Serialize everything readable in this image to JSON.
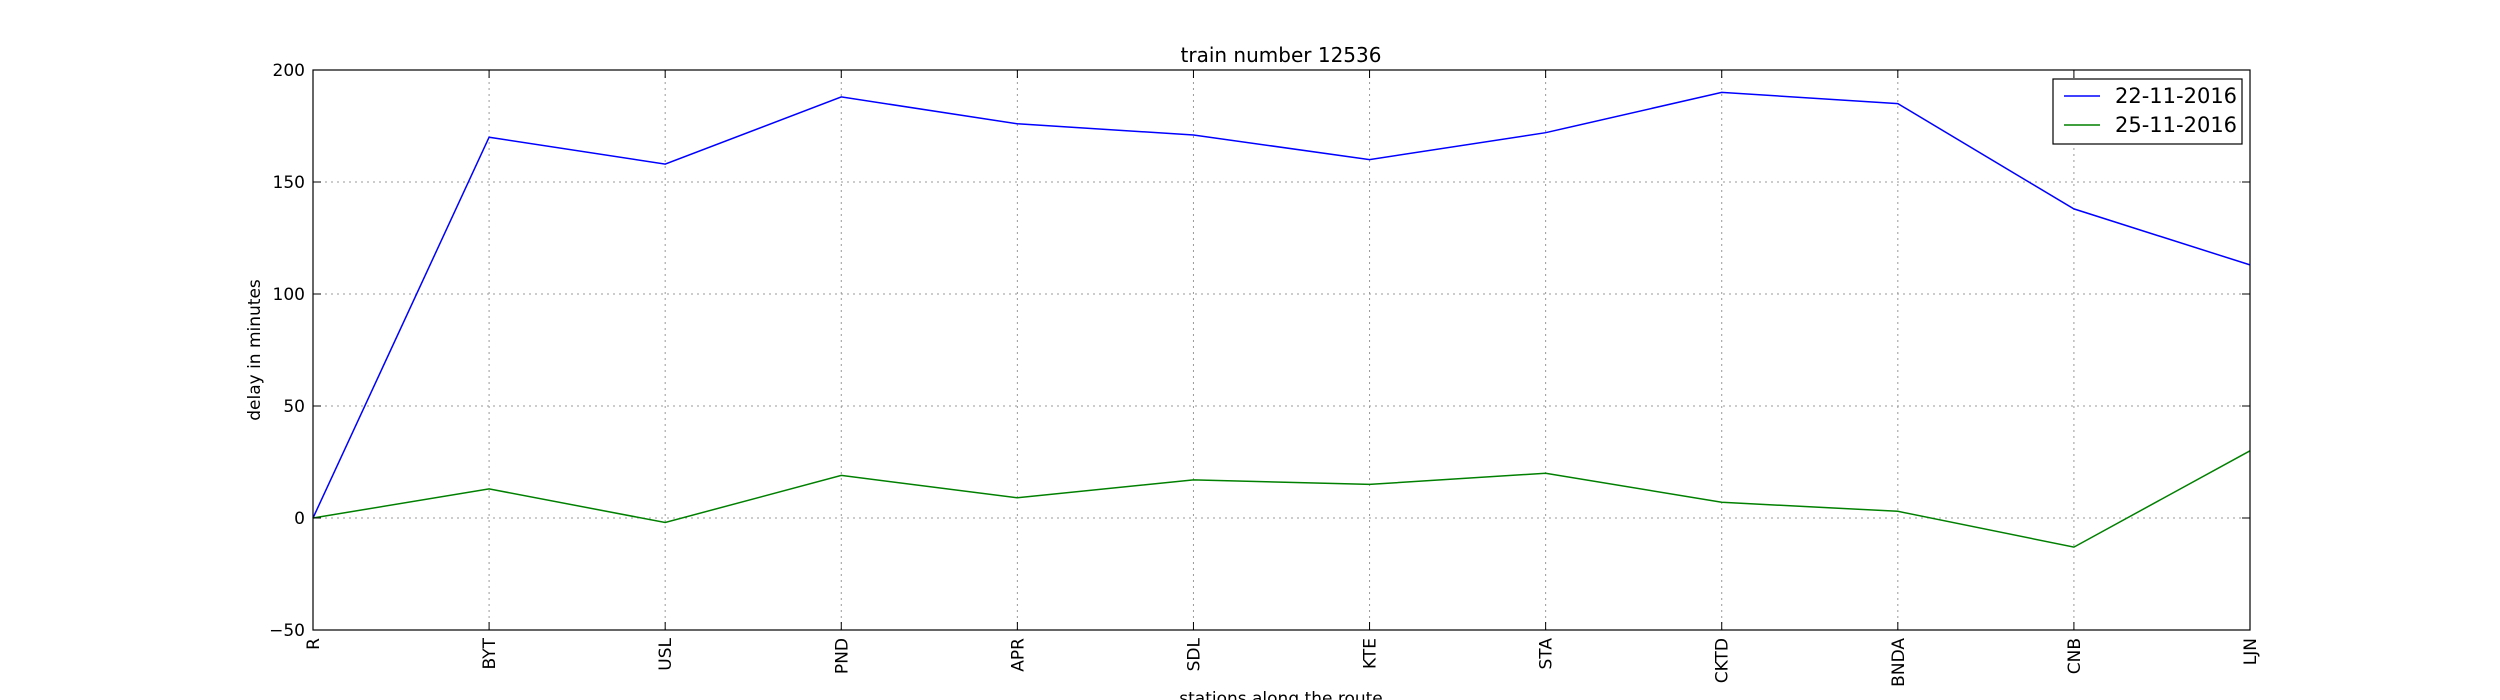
{
  "chart_data": {
    "type": "line",
    "title": "train number 12536",
    "xlabel": "stations along the route",
    "ylabel": "delay in minutes",
    "categories": [
      "R",
      "BYT",
      "USL",
      "PND",
      "APR",
      "SDL",
      "KTE",
      "STA",
      "CKTD",
      "BNDA",
      "CNB",
      "LJN"
    ],
    "ylim": [
      -50,
      200
    ],
    "yticks": [
      -50,
      0,
      50,
      100,
      150,
      200
    ],
    "ytick_labels": [
      "−50",
      "0",
      "50",
      "100",
      "150",
      "200"
    ],
    "grid": true,
    "legend_position": "top-right",
    "series": [
      {
        "name": "22-11-2016",
        "color": "#0000ff",
        "values": [
          0,
          170,
          158,
          188,
          176,
          171,
          160,
          172,
          190,
          185,
          138,
          113
        ]
      },
      {
        "name": "25-11-2016",
        "color": "#008000",
        "values": [
          0,
          13,
          -2,
          19,
          9,
          17,
          15,
          20,
          7,
          3,
          -13,
          30
        ]
      }
    ]
  }
}
